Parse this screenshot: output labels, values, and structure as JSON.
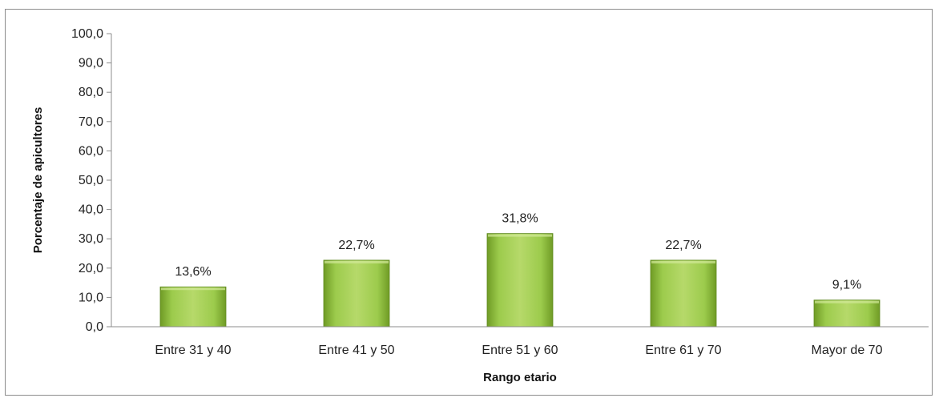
{
  "chart_data": {
    "type": "bar",
    "categories": [
      "Entre 31 y 40",
      "Entre 41 y 50",
      "Entre 51 y 60",
      "Entre 61 y 70",
      "Mayor de 70"
    ],
    "values": [
      13.6,
      22.7,
      31.8,
      22.7,
      9.1
    ],
    "data_labels": [
      "13,6%",
      "22,7%",
      "31,8%",
      "22,7%",
      "9,1%"
    ],
    "xlabel": "Rango etario",
    "ylabel": "Porcentaje de apicultores",
    "ylim": [
      0,
      100
    ],
    "yticks": [
      0,
      10,
      20,
      30,
      40,
      50,
      60,
      70,
      80,
      90,
      100
    ],
    "ytick_labels": [
      "0,0",
      "10,0",
      "20,0",
      "30,0",
      "40,0",
      "50,0",
      "60,0",
      "70,0",
      "80,0",
      "90,0",
      "100,0"
    ],
    "grid": false,
    "legend": "none",
    "colors": {
      "bar_light": "#b6d96a",
      "bar_mid": "#92c13f",
      "bar_dark": "#5f8a1e",
      "axis": "#8c8c8c"
    }
  }
}
